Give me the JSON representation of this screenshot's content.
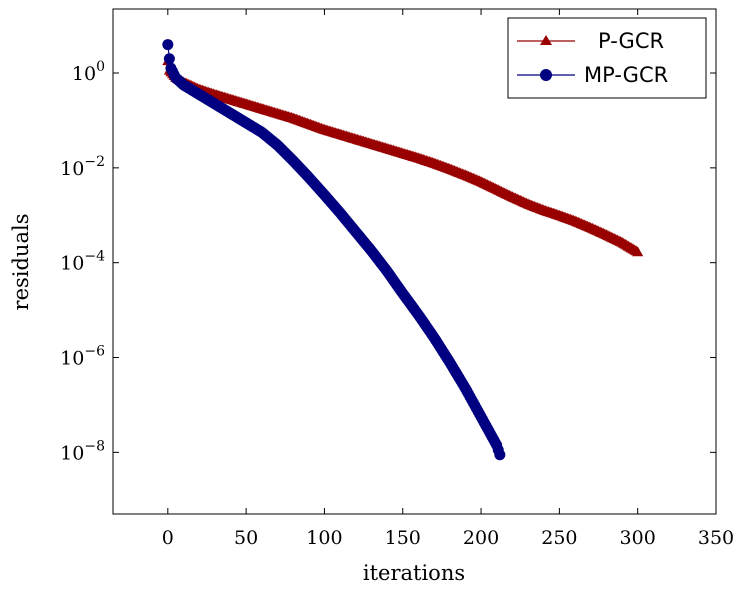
{
  "chart_data": {
    "type": "line",
    "xlabel": "iterations",
    "ylabel": "residuals",
    "xlim": [
      -35,
      350
    ],
    "ylim_log10": [
      -9.3,
      1.35
    ],
    "y_scale": "log",
    "x_ticks": [
      0,
      50,
      100,
      150,
      200,
      250,
      300,
      350
    ],
    "x_tick_labels": [
      "0",
      "50",
      "100",
      "150",
      "200",
      "250",
      "300",
      "350"
    ],
    "y_ticks_log10": [
      0,
      -2,
      -4,
      -6,
      -8
    ],
    "y_tick_labels": [
      {
        "base": "10",
        "exp": "0"
      },
      {
        "base": "10",
        "exp": "−2"
      },
      {
        "base": "10",
        "exp": "−4"
      },
      {
        "base": "10",
        "exp": "−6"
      },
      {
        "base": "10",
        "exp": "−8"
      }
    ],
    "grid": false,
    "legend_position": "top-right",
    "series": [
      {
        "name": "P-GCR",
        "color": "#990000",
        "marker": "triangle",
        "x": [
          0,
          1,
          5,
          10,
          20,
          30,
          40,
          50,
          60,
          70,
          80,
          90,
          100,
          110,
          120,
          130,
          140,
          150,
          160,
          170,
          180,
          190,
          200,
          210,
          220,
          230,
          240,
          250,
          260,
          270,
          280,
          290,
          300
        ],
        "log10_y": [
          0.25,
          0.05,
          -0.1,
          -0.2,
          -0.35,
          -0.46,
          -0.56,
          -0.66,
          -0.76,
          -0.86,
          -0.96,
          -1.08,
          -1.2,
          -1.3,
          -1.4,
          -1.5,
          -1.6,
          -1.7,
          -1.8,
          -1.91,
          -2.03,
          -2.16,
          -2.3,
          -2.46,
          -2.62,
          -2.77,
          -2.9,
          -3.01,
          -3.13,
          -3.27,
          -3.42,
          -3.58,
          -3.78
        ]
      },
      {
        "name": "MP-GCR",
        "color": "#000080",
        "marker": "circle",
        "x": [
          0,
          1,
          2,
          5,
          10,
          20,
          30,
          40,
          50,
          60,
          70,
          80,
          90,
          100,
          110,
          120,
          130,
          140,
          150,
          160,
          170,
          180,
          190,
          200,
          210,
          212
        ],
        "log10_y": [
          0.6,
          0.3,
          0.1,
          -0.1,
          -0.25,
          -0.45,
          -0.65,
          -0.85,
          -1.05,
          -1.25,
          -1.52,
          -1.85,
          -2.2,
          -2.57,
          -2.95,
          -3.35,
          -3.75,
          -4.18,
          -4.65,
          -5.1,
          -5.58,
          -6.1,
          -6.65,
          -7.25,
          -7.85,
          -8.05
        ]
      }
    ]
  }
}
